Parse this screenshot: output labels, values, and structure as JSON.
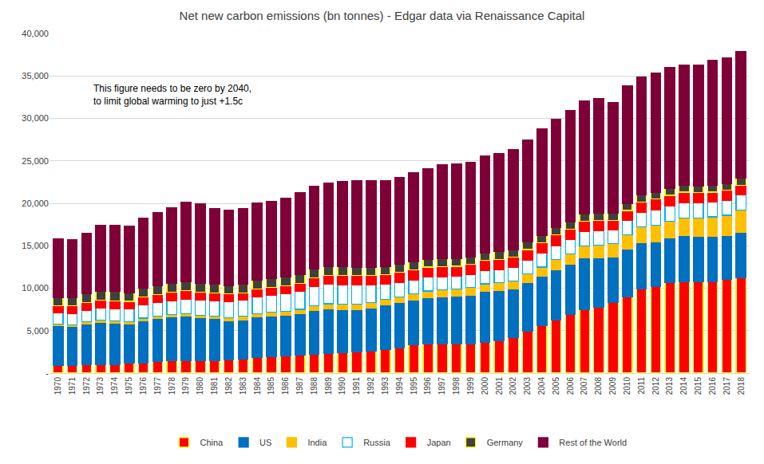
{
  "chart_data": {
    "type": "bar",
    "title": "Net new carbon emissions (bn tonnes) - Edgar data via Renaissance Capital",
    "annotation": [
      "This figure needs to be zero by 2040,",
      "to limit global warming to just +1.5c"
    ],
    "categories": [
      "1970",
      "1971",
      "1972",
      "1973",
      "1974",
      "1975",
      "1976",
      "1977",
      "1978",
      "1979",
      "1980",
      "1981",
      "1982",
      "1983",
      "1984",
      "1985",
      "1986",
      "1987",
      "1988",
      "1989",
      "1990",
      "1991",
      "1992",
      "1993",
      "1994",
      "1995",
      "1996",
      "1997",
      "1998",
      "1999",
      "2000",
      "2001",
      "2002",
      "2003",
      "2004",
      "2005",
      "2006",
      "2007",
      "2008",
      "2009",
      "2010",
      "2011",
      "2012",
      "2013",
      "2014",
      "2015",
      "2016",
      "2017",
      "2018"
    ],
    "stacked": true,
    "grid": true,
    "legend": "bottom",
    "ylim": [
      0,
      40000
    ],
    "yticks": [
      {
        "value": 0,
        "label": "-"
      },
      {
        "value": 5000,
        "label": "5,000"
      },
      {
        "value": 10000,
        "label": "10,000"
      },
      {
        "value": 15000,
        "label": "15,000"
      },
      {
        "value": 20000,
        "label": "20,000"
      },
      {
        "value": 25000,
        "label": "25,000"
      },
      {
        "value": 30000,
        "label": "30,000"
      },
      {
        "value": 35000,
        "label": "35,000"
      },
      {
        "value": 40000,
        "label": "40,000"
      }
    ],
    "series": [
      {
        "name": "China",
        "color": "#ff0000",
        "values": [
          900,
          900,
          950,
          1000,
          1000,
          1150,
          1200,
          1350,
          1500,
          1500,
          1500,
          1500,
          1600,
          1700,
          1800,
          1900,
          2000,
          2100,
          2250,
          2300,
          2400,
          2500,
          2600,
          2800,
          3000,
          3300,
          3400,
          3400,
          3400,
          3400,
          3600,
          3800,
          4200,
          4900,
          5600,
          6300,
          6900,
          7500,
          7800,
          8300,
          9000,
          9900,
          10200,
          10700,
          10800,
          10800,
          10800,
          11000,
          11200
        ]
      },
      {
        "name": "US",
        "color": "#0070c0",
        "values": [
          4700,
          4600,
          4850,
          5000,
          4900,
          4650,
          5000,
          5050,
          5100,
          5200,
          5000,
          4900,
          4600,
          4600,
          4800,
          4800,
          4800,
          4900,
          5150,
          5300,
          5100,
          5000,
          5100,
          5200,
          5300,
          5300,
          5500,
          5600,
          5700,
          5800,
          6000,
          5900,
          5700,
          5800,
          5800,
          5900,
          5900,
          6100,
          5800,
          5400,
          5600,
          5500,
          5300,
          5200,
          5400,
          5300,
          5300,
          5200,
          5400
        ]
      },
      {
        "name": "India",
        "color": "#ffc000",
        "values": [
          200,
          210,
          220,
          230,
          240,
          250,
          270,
          280,
          300,
          310,
          320,
          340,
          360,
          380,
          400,
          450,
          480,
          510,
          540,
          570,
          600,
          620,
          640,
          650,
          690,
          740,
          780,
          810,
          830,
          880,
          920,
          950,
          970,
          1020,
          1080,
          1160,
          1250,
          1350,
          1450,
          1580,
          1700,
          1800,
          1950,
          2000,
          2100,
          2200,
          2300,
          2400,
          2600
        ]
      },
      {
        "name": "Russia",
        "color": "#ffffff",
        "values": [
          1300,
          1340,
          1380,
          1420,
          1460,
          1500,
          1550,
          1600,
          1650,
          1700,
          1750,
          1800,
          1850,
          1900,
          1950,
          2000,
          2050,
          2150,
          2250,
          2300,
          2300,
          2250,
          2000,
          1850,
          1700,
          1650,
          1600,
          1550,
          1500,
          1520,
          1550,
          1560,
          1580,
          1620,
          1640,
          1650,
          1680,
          1700,
          1720,
          1600,
          1680,
          1720,
          1760,
          1740,
          1750,
          1720,
          1710,
          1740,
          1780
        ]
      },
      {
        "name": "Japan",
        "color": "#ff0000",
        "values": [
          800,
          850,
          900,
          950,
          930,
          900,
          940,
          960,
          950,
          980,
          950,
          920,
          900,
          890,
          930,
          920,
          930,
          940,
          1000,
          1050,
          1100,
          1120,
          1130,
          1130,
          1180,
          1190,
          1200,
          1200,
          1160,
          1190,
          1210,
          1200,
          1200,
          1220,
          1240,
          1250,
          1230,
          1260,
          1200,
          1120,
          1170,
          1220,
          1270,
          1300,
          1260,
          1230,
          1210,
          1200,
          1170
        ]
      },
      {
        "name": "Germany",
        "color": "#404040",
        "values": [
          1000,
          990,
          1030,
          1080,
          1060,
          1000,
          1060,
          1040,
          1080,
          1110,
          1090,
          1050,
          1010,
          1010,
          1030,
          1040,
          1040,
          1030,
          1030,
          1010,
          1010,
          980,
          940,
          930,
          920,
          910,
          940,
          910,
          900,
          880,
          880,
          890,
          880,
          890,
          880,
          860,
          860,
          840,
          850,
          800,
          840,
          820,
          820,
          840,
          810,
          810,
          810,
          810,
          790
        ]
      },
      {
        "name": "Rest of the World",
        "color": "#7f0037",
        "values": [
          6900,
          6810,
          7170,
          7720,
          7810,
          7850,
          8280,
          8620,
          8920,
          9300,
          9290,
          8890,
          8880,
          8920,
          9090,
          9090,
          9300,
          9670,
          9780,
          9870,
          10090,
          10230,
          10290,
          10140,
          10210,
          10510,
          10680,
          11030,
          11110,
          11130,
          11440,
          11600,
          11770,
          12050,
          12560,
          12780,
          13080,
          13350,
          13480,
          13100,
          13810,
          13940,
          14000,
          14220,
          14180,
          14240,
          14670,
          14750,
          14960
        ]
      }
    ]
  }
}
